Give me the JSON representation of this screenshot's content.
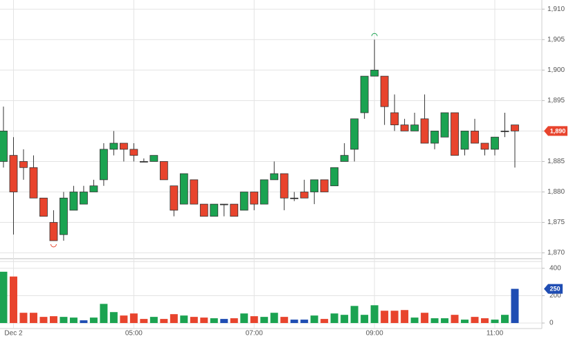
{
  "chart_data": [
    {
      "type": "candlestick",
      "categories": [
        null,
        "Dec 2",
        null,
        null,
        null,
        null,
        null,
        null,
        null,
        null,
        null,
        null,
        null,
        "05:00",
        null,
        null,
        null,
        null,
        null,
        null,
        null,
        null,
        null,
        null,
        null,
        "07:00",
        null,
        null,
        null,
        null,
        null,
        null,
        null,
        null,
        null,
        null,
        null,
        "09:00",
        null,
        null,
        null,
        null,
        null,
        null,
        null,
        null,
        null,
        null,
        null,
        "11:00",
        null,
        null
      ],
      "open": [
        1885,
        1886,
        1885,
        1884,
        1879,
        1875,
        1873,
        1877,
        1878,
        1880,
        1882,
        1887,
        1888,
        1887,
        1885,
        1885,
        1885,
        1881,
        1878,
        1882,
        1878,
        1876,
        1878,
        1878,
        1877,
        1880,
        1878,
        1882,
        1883,
        1879,
        1880,
        1880,
        1882,
        1881,
        1885,
        1887,
        1893,
        1899,
        1899,
        1893,
        1891,
        1890,
        1892,
        1888,
        1889,
        1893,
        1887,
        1890,
        1888,
        1887,
        1890,
        1891
      ],
      "high": [
        1894,
        1889,
        1887,
        1886,
        1879,
        1877,
        1880,
        1881,
        1881,
        1882,
        1888,
        1890,
        1888,
        1888,
        1885.5,
        1886,
        1885,
        1881,
        1883,
        1882,
        1878,
        1878,
        1878,
        1878,
        1880,
        1880,
        1882,
        1885,
        1883,
        1880,
        1882,
        1882,
        1882,
        1884,
        1888,
        1892,
        1899,
        1905,
        1899,
        1896,
        1892,
        1893,
        1896,
        1890,
        1893,
        1893,
        1890,
        1892,
        1888,
        1889,
        1893,
        1891
      ],
      "low": [
        1884,
        1873,
        1882,
        1879,
        1876,
        1872,
        1872,
        1877,
        1878,
        1880,
        1881,
        1886,
        1885,
        1885,
        1885,
        1885,
        1882,
        1876,
        1878,
        1878,
        1876,
        1876,
        1876,
        1876,
        1877,
        1877,
        1878,
        1882,
        1877,
        1878.5,
        1879,
        1878,
        1880,
        1881,
        1885,
        1885,
        1892,
        1899,
        1891,
        1890,
        1890,
        1890,
        1888,
        1887,
        1889,
        1886,
        1886,
        1888,
        1886,
        1886,
        1889,
        1884
      ],
      "close": [
        1890,
        1880,
        1884,
        1879,
        1876,
        1872,
        1879,
        1880,
        1880,
        1881,
        1887,
        1888,
        1887,
        1886,
        1885,
        1886,
        1882,
        1877,
        1883,
        1878,
        1876,
        1878,
        1878,
        1876,
        1880,
        1878,
        1882,
        1883,
        1879,
        1879,
        1879,
        1882,
        1880,
        1884,
        1886,
        1892,
        1899,
        1900,
        1894,
        1891,
        1890,
        1891,
        1888,
        1890,
        1893,
        1886,
        1890,
        1888,
        1887,
        1889,
        1890,
        1890
      ],
      "up_color": "#1ba351",
      "down_color": "#e8442d",
      "flat_color": "#333333",
      "ylim": [
        1869.5,
        1911.5
      ],
      "yticks": [
        {
          "value": 1870,
          "label": "1,870"
        },
        {
          "value": 1875,
          "label": "1,875"
        },
        {
          "value": 1880,
          "label": "1,880"
        },
        {
          "value": 1885,
          "label": "1,885"
        },
        {
          "value": 1890,
          "label": "1,890"
        },
        {
          "value": 1895,
          "label": "1,895"
        },
        {
          "value": 1900,
          "label": "1,900"
        },
        {
          "value": 1905,
          "label": "1,905"
        },
        {
          "value": 1910,
          "label": "1,910"
        }
      ],
      "last_label": {
        "value": 1890,
        "label": "1,890"
      },
      "grid": true
    },
    {
      "type": "bar",
      "values": [
        375,
        340,
        75,
        75,
        45,
        50,
        45,
        40,
        20,
        40,
        140,
        80,
        55,
        70,
        30,
        45,
        30,
        65,
        55,
        45,
        40,
        35,
        30,
        35,
        70,
        50,
        45,
        75,
        45,
        25,
        25,
        55,
        30,
        70,
        60,
        125,
        60,
        130,
        90,
        90,
        95,
        40,
        75,
        35,
        35,
        60,
        25,
        45,
        35,
        25,
        60,
        250
      ],
      "colors": [
        "#1ba351",
        "#e8442d",
        "#e8442d",
        "#e8442d",
        "#e8442d",
        "#e8442d",
        "#1ba351",
        "#1ba351",
        "#1f4db3",
        "#1ba351",
        "#1ba351",
        "#1ba351",
        "#e8442d",
        "#e8442d",
        "#e8442d",
        "#1ba351",
        "#e8442d",
        "#e8442d",
        "#1ba351",
        "#e8442d",
        "#e8442d",
        "#1ba351",
        "#1f4db3",
        "#e8442d",
        "#1ba351",
        "#e8442d",
        "#1ba351",
        "#1ba351",
        "#e8442d",
        "#1f4db3",
        "#1f4db3",
        "#1ba351",
        "#e8442d",
        "#1ba351",
        "#1ba351",
        "#1ba351",
        "#1ba351",
        "#1ba351",
        "#e8442d",
        "#e8442d",
        "#e8442d",
        "#1ba351",
        "#e8442d",
        "#1ba351",
        "#1ba351",
        "#e8442d",
        "#1ba351",
        "#e8442d",
        "#e8442d",
        "#1ba351",
        "#1ba351",
        "#1f4db3"
      ],
      "ylim": [
        -15,
        440
      ],
      "yticks": [
        0,
        200,
        400
      ],
      "grid": true
    }
  ]
}
